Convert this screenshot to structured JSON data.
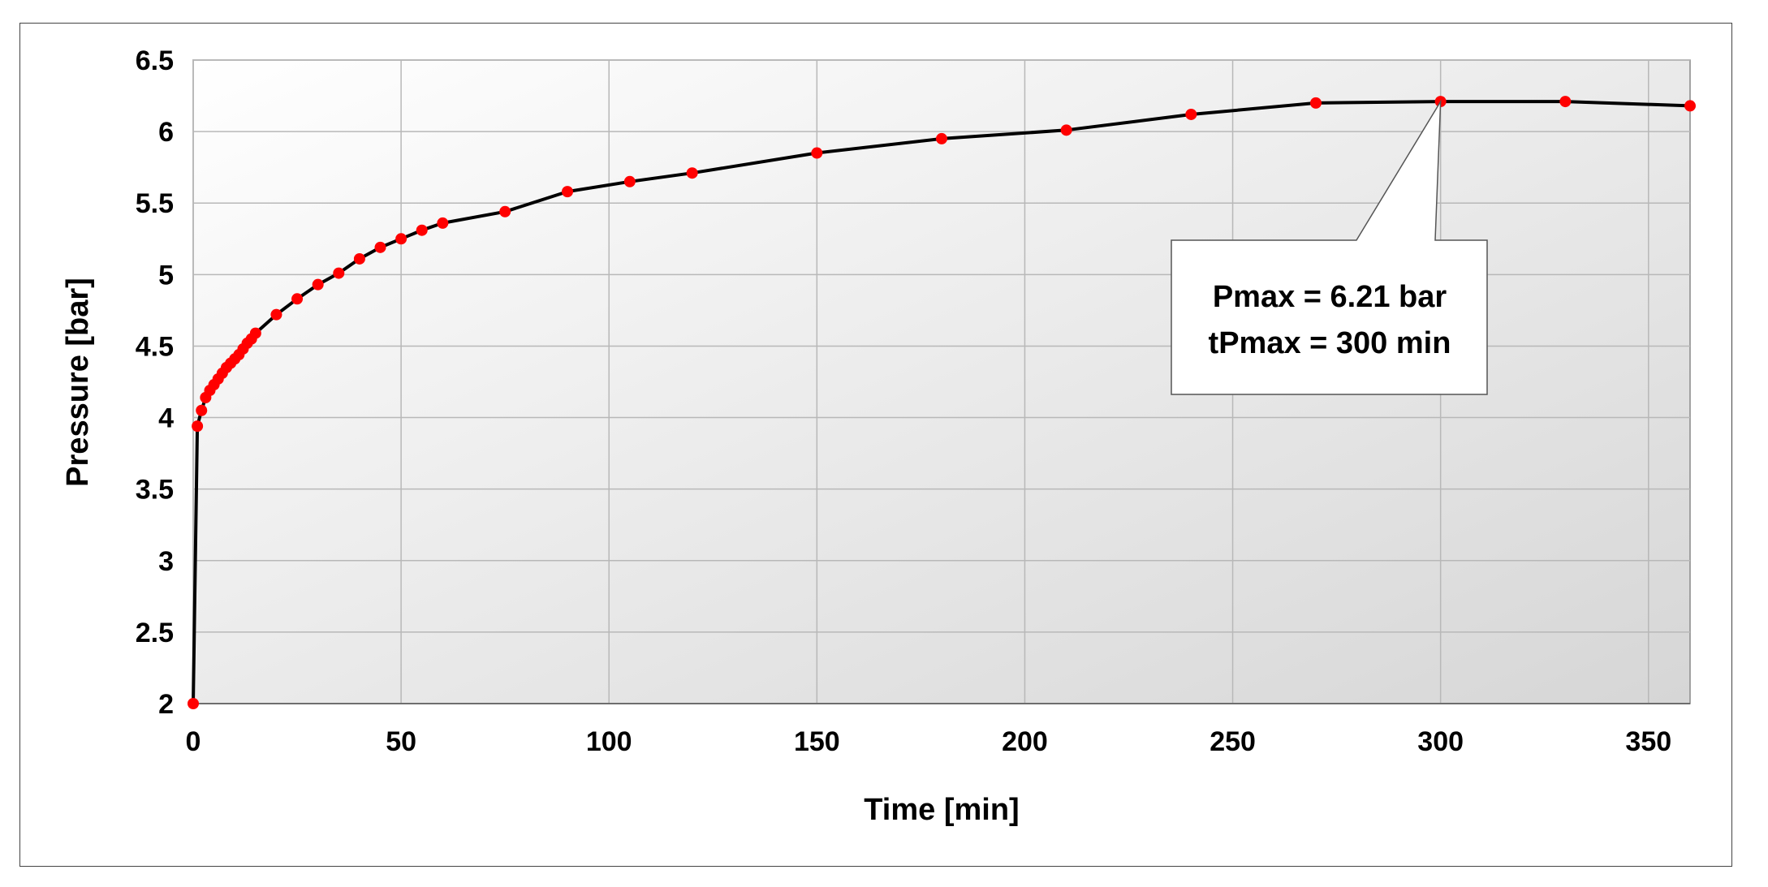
{
  "chart_data": {
    "type": "line",
    "title": "",
    "xlabel": "Time [min]",
    "ylabel": "Pressure [bar]",
    "xlim": [
      0,
      360
    ],
    "ylim": [
      2,
      6.5
    ],
    "xticks": [
      0,
      50,
      100,
      150,
      200,
      250,
      300,
      350
    ],
    "yticks": [
      2,
      2.5,
      3,
      3.5,
      4,
      4.5,
      5,
      5.5,
      6,
      6.5
    ],
    "xtick_labels": [
      "0",
      "50",
      "100",
      "150",
      "200",
      "250",
      "300",
      "350"
    ],
    "ytick_labels": [
      "2",
      "2.5",
      "3",
      "3.5",
      "4",
      "4.5",
      "5",
      "5.5",
      "6",
      "6.5"
    ],
    "grid": true,
    "legend": false,
    "line_color": "#000000",
    "marker_color": "#ff0000",
    "background": "gradient white to light gray",
    "series": [
      {
        "x": [
          0,
          1,
          2,
          3,
          4,
          5,
          6,
          7,
          8,
          9,
          10,
          11,
          12,
          13,
          14,
          15,
          20,
          25,
          30,
          35,
          40,
          45,
          50,
          55,
          60,
          75,
          90,
          105,
          120,
          150,
          180,
          210,
          240,
          270,
          300,
          330,
          360
        ],
        "y": [
          2.0,
          3.94,
          4.05,
          4.14,
          4.19,
          4.23,
          4.27,
          4.31,
          4.35,
          4.38,
          4.41,
          4.44,
          4.48,
          4.52,
          4.55,
          4.59,
          4.72,
          4.83,
          4.93,
          5.01,
          5.11,
          5.19,
          5.25,
          5.31,
          5.36,
          5.44,
          5.58,
          5.65,
          5.71,
          5.85,
          5.95,
          6.01,
          6.12,
          6.2,
          6.21,
          6.21,
          6.18
        ]
      }
    ],
    "annotation": {
      "line1": "Pmax = 6.21 bar",
      "line2": "tPmax = 300 min",
      "points_to": [
        300,
        6.21
      ]
    }
  }
}
